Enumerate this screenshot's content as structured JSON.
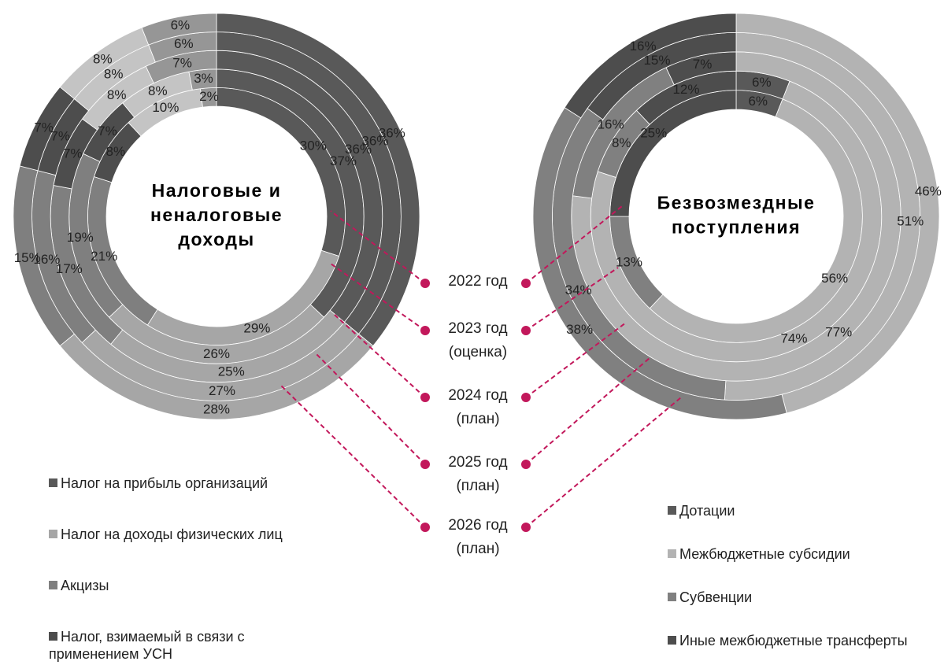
{
  "chart_data": [
    {
      "type": "donut",
      "title": [
        "Налоговые и",
        "неналоговые",
        "доходы"
      ],
      "series": [
        {
          "name": "Налог на прибыль организаций",
          "color": "#595959",
          "values": [
            30,
            37,
            36,
            36,
            36
          ],
          "value_labels": [
            "30%",
            "37%",
            "36%",
            "36%",
            "36%"
          ]
        },
        {
          "name": "Налог на доходы физических лиц",
          "color": "#a6a6a6",
          "values": [
            29,
            26,
            25,
            27,
            28
          ],
          "value_labels": [
            "29%",
            "26%",
            "25%",
            "27%",
            "28%"
          ]
        },
        {
          "name": "Акцизы",
          "color": "#7f7f7f",
          "values": [
            21,
            19,
            17,
            16,
            15
          ],
          "value_labels": [
            "21%",
            "19%",
            "17%",
            "16%",
            "15%"
          ]
        },
        {
          "name": "Налог, взимаемый в связи с применением УСН",
          "color": "#4d4d4d",
          "values": [
            8,
            7,
            7,
            7,
            7
          ],
          "value_labels": [
            "8%",
            "7%",
            "7%",
            "7%",
            "7%"
          ]
        },
        {
          "name": null,
          "color": "#c4c4c4",
          "values": [
            10,
            8,
            8,
            8,
            8
          ],
          "value_labels": [
            "10%",
            "8%",
            "8%",
            "8%",
            "8%"
          ]
        },
        {
          "name": null,
          "color": "#969696",
          "values": [
            2,
            3,
            7,
            6,
            6
          ],
          "value_labels": [
            "2%",
            "3%",
            "7%",
            "6%",
            "6%"
          ]
        }
      ]
    },
    {
      "type": "donut",
      "title": [
        "Безвозмездные",
        "поступления"
      ],
      "series": [
        {
          "name": "Дотации",
          "color": "#595959",
          "values": [
            6,
            6,
            0,
            0,
            0
          ],
          "value_labels": [
            "6%",
            "6%",
            null,
            null,
            null
          ]
        },
        {
          "name": "Межбюджетные субсидии",
          "color": "#b3b3b3",
          "values": [
            56,
            74,
            77,
            51,
            46
          ],
          "value_labels": [
            "56%",
            "74%",
            "77%",
            "51%",
            "46%"
          ]
        },
        {
          "name": "Субвенции",
          "color": "#808080",
          "values": [
            13,
            8,
            16,
            34,
            38
          ],
          "value_labels": [
            "13%",
            "8%",
            "16%",
            "34%",
            "38%"
          ]
        },
        {
          "name": "Иные межбюджетные трансферты",
          "color": "#4d4d4d",
          "values": [
            25,
            12,
            7,
            15,
            16
          ],
          "value_labels": [
            "25%",
            "12%",
            "7%",
            "15%",
            "16%"
          ]
        }
      ]
    }
  ],
  "ring_labels": [
    [
      "2022 год"
    ],
    [
      "2023 год",
      "(оценка)"
    ],
    [
      "2024 год",
      "(план)"
    ],
    [
      "2025 год",
      "(план)"
    ],
    [
      "2026 год",
      "(план)"
    ]
  ]
}
